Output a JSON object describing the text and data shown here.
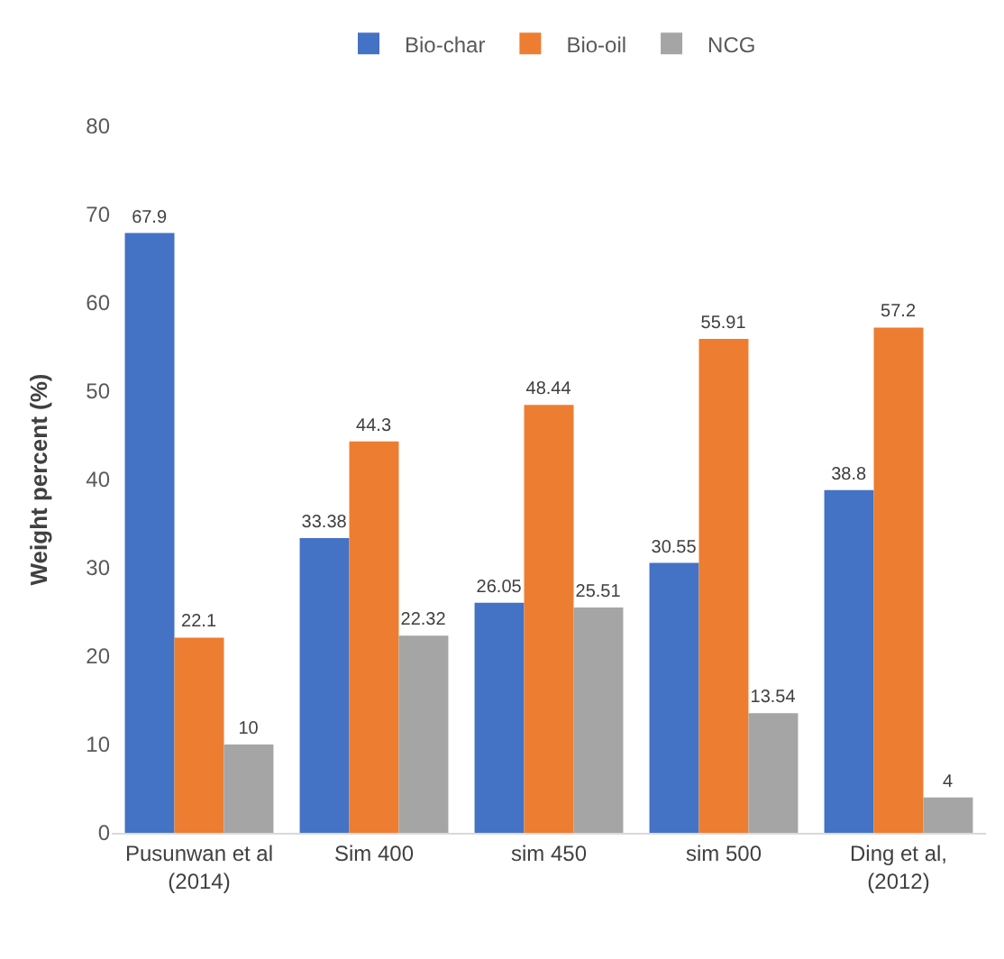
{
  "chart_data": {
    "type": "bar",
    "ylabel": "Weight percent (%)",
    "categories": [
      "Pusunwan et al\n(2014)",
      "Sim 400",
      "sim 450",
      "sim 500",
      "Ding et al,\n(2012)"
    ],
    "series": [
      {
        "name": "Bio-char",
        "color": "#4472c4",
        "values": [
          67.9,
          33.38,
          26.05,
          30.55,
          38.8
        ]
      },
      {
        "name": "Bio-oil",
        "color": "#ed7d31",
        "values": [
          22.1,
          44.3,
          48.44,
          55.91,
          57.2
        ]
      },
      {
        "name": "NCG",
        "color": "#a5a5a5",
        "values": [
          10,
          22.32,
          25.51,
          13.54,
          4
        ]
      }
    ],
    "ylim": [
      0,
      80
    ],
    "yticks": [
      0,
      10,
      20,
      30,
      40,
      50,
      60,
      70,
      80
    ],
    "grid": false,
    "legend": "top",
    "data_labels": true
  }
}
